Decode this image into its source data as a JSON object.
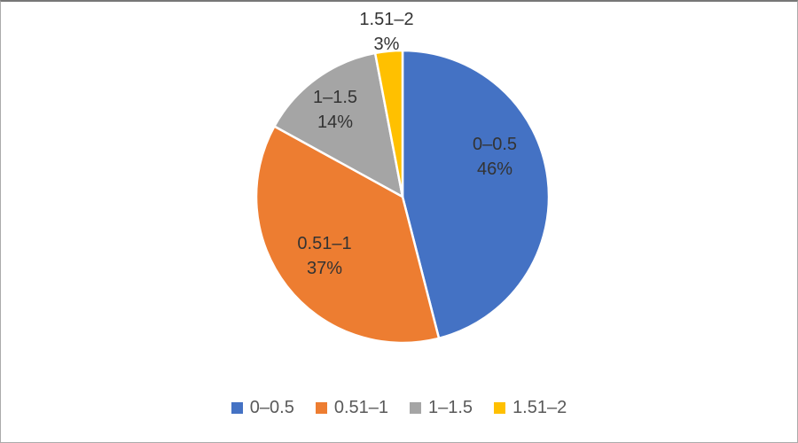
{
  "chart_data": {
    "type": "pie",
    "title": "",
    "categories": [
      "0–0.5",
      "0.51–1",
      "1–1.5",
      "1.51–2"
    ],
    "values": [
      46,
      37,
      14,
      3
    ],
    "value_unit": "%",
    "start_angle_deg": 0,
    "direction": "clockwise",
    "colors": [
      "#4472C4",
      "#ED7D31",
      "#A5A5A5",
      "#FFC000"
    ],
    "data_labels": [
      {
        "category": "0–0.5",
        "percent": "46%",
        "placement": "inside"
      },
      {
        "category": "0.51–1",
        "percent": "37%",
        "placement": "inside"
      },
      {
        "category": "1–1.5",
        "percent": "14%",
        "placement": "inside"
      },
      {
        "category": "1.51–2",
        "percent": "3%",
        "placement": "outside-top"
      }
    ],
    "legend": {
      "position": "bottom",
      "items": [
        "0–0.5",
        "0.51–1",
        "1–1.5",
        "1.51–2"
      ]
    },
    "text_colors": {
      "data_label": "#333333",
      "legend": "#595959"
    },
    "grid": false
  }
}
